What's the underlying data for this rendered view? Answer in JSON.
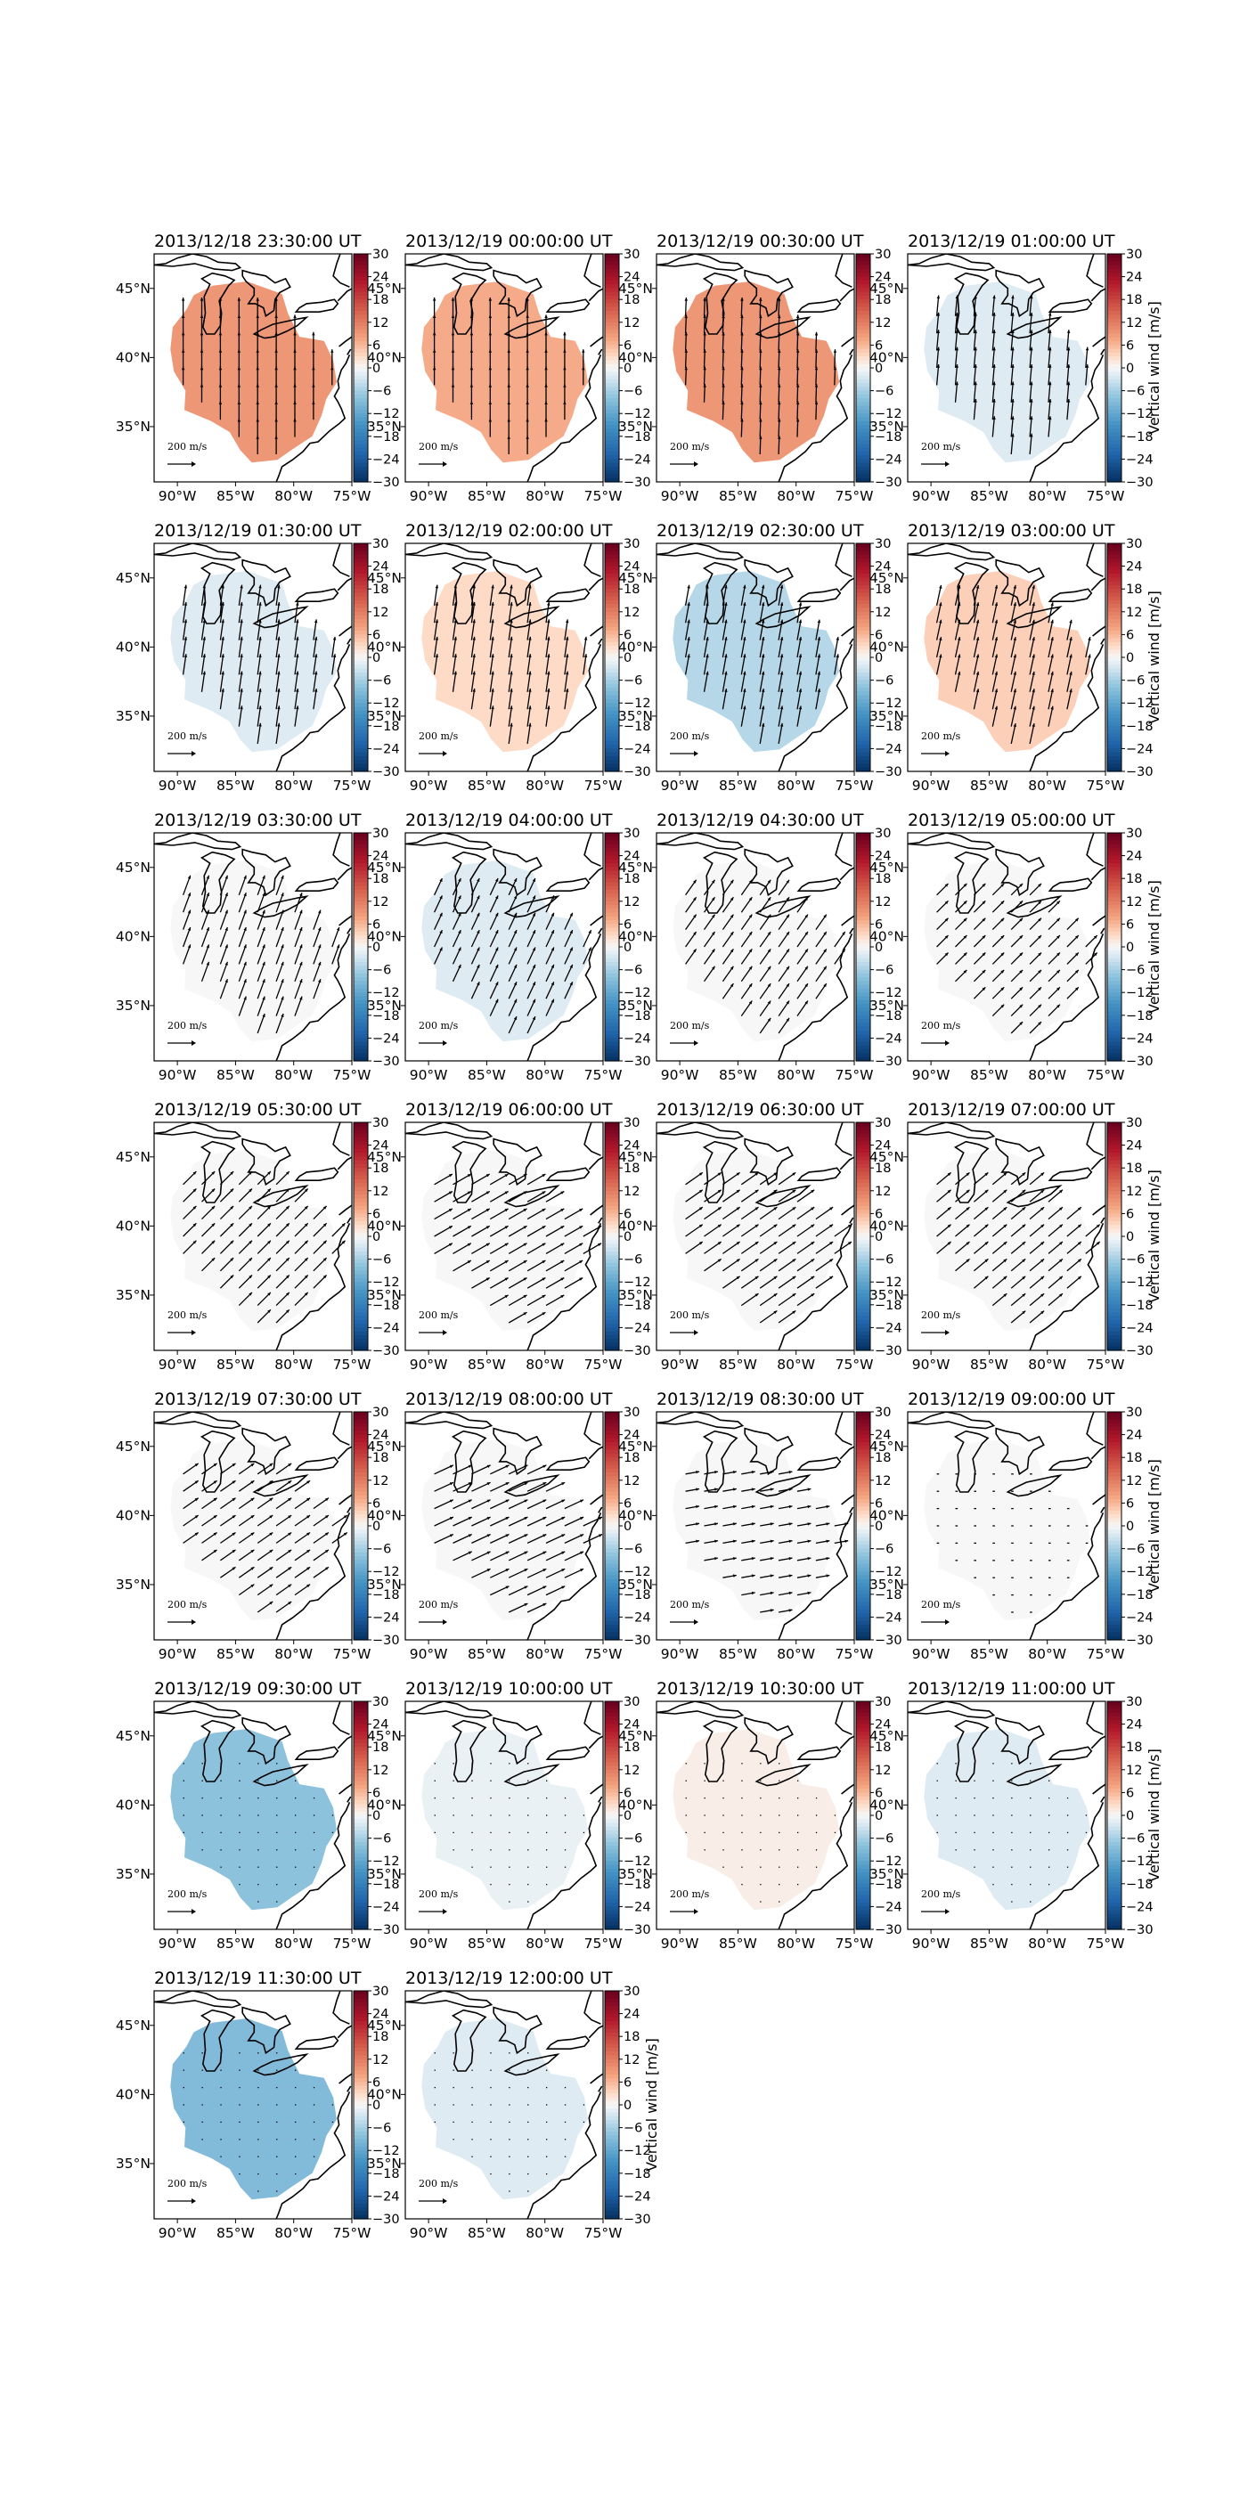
{
  "figure": {
    "colorbar_label": "Vertical wind [m/s]",
    "colorbar_ticks": [
      "30",
      "24",
      "18",
      "12",
      "6",
      "0",
      "−6",
      "−12",
      "−18",
      "−24",
      "−30"
    ],
    "lon_ticks": [
      "90°W",
      "85°W",
      "80°W",
      "75°W"
    ],
    "lat_ticks": [
      "45°N",
      "40°N",
      "35°N"
    ],
    "scale_label": "200 m/s",
    "colors": {
      "positive": "#b2182b",
      "negative": "#2166ac",
      "neutral": "#f7f7f7"
    }
  },
  "chart_data": {
    "type": "map",
    "variable": "Vertical wind",
    "units": "m/s",
    "colorbar_range": [
      -30,
      30
    ],
    "lon_range": [
      -92,
      -75
    ],
    "lat_range": [
      31,
      47.5
    ],
    "panels": [
      {
        "title": "2013/12/18 23:30:00 UT",
        "vertical_wind": 9,
        "arrow_dir_deg": 180,
        "arrow_len": 0.8
      },
      {
        "title": "2013/12/19 00:00:00 UT",
        "vertical_wind": 7,
        "arrow_dir_deg": 180,
        "arrow_len": 0.8
      },
      {
        "title": "2013/12/19 00:30:00 UT",
        "vertical_wind": 9,
        "arrow_dir_deg": 182,
        "arrow_len": 0.8
      },
      {
        "title": "2013/12/19 01:00:00 UT",
        "vertical_wind": -2,
        "arrow_dir_deg": 185,
        "arrow_len": 0.9
      },
      {
        "title": "2013/12/19 01:30:00 UT",
        "vertical_wind": -2,
        "arrow_dir_deg": 188,
        "arrow_len": 0.9
      },
      {
        "title": "2013/12/19 02:00:00 UT",
        "vertical_wind": 3,
        "arrow_dir_deg": 188,
        "arrow_len": 0.9
      },
      {
        "title": "2013/12/19 02:30:00 UT",
        "vertical_wind": -5,
        "arrow_dir_deg": 190,
        "arrow_len": 0.9
      },
      {
        "title": "2013/12/19 03:00:00 UT",
        "vertical_wind": 4,
        "arrow_dir_deg": 192,
        "arrow_len": 0.9
      },
      {
        "title": "2013/12/19 03:30:00 UT",
        "vertical_wind": 0,
        "arrow_dir_deg": 200,
        "arrow_len": 0.9
      },
      {
        "title": "2013/12/19 04:00:00 UT",
        "vertical_wind": -2,
        "arrow_dir_deg": 205,
        "arrow_len": 0.8
      },
      {
        "title": "2013/12/19 04:30:00 UT",
        "vertical_wind": 0,
        "arrow_dir_deg": 215,
        "arrow_len": 0.8
      },
      {
        "title": "2013/12/19 05:00:00 UT",
        "vertical_wind": 0,
        "arrow_dir_deg": 225,
        "arrow_len": 0.7
      },
      {
        "title": "2013/12/19 05:30:00 UT",
        "vertical_wind": 0,
        "arrow_dir_deg": 225,
        "arrow_len": 0.8
      },
      {
        "title": "2013/12/19 06:00:00 UT",
        "vertical_wind": 0,
        "arrow_dir_deg": 240,
        "arrow_len": 0.9
      },
      {
        "title": "2013/12/19 06:30:00 UT",
        "vertical_wind": 0,
        "arrow_dir_deg": 235,
        "arrow_len": 0.9
      },
      {
        "title": "2013/12/19 07:00:00 UT",
        "vertical_wind": 0,
        "arrow_dir_deg": 230,
        "arrow_len": 0.8
      },
      {
        "title": "2013/12/19 07:30:00 UT",
        "vertical_wind": 0,
        "arrow_dir_deg": 235,
        "arrow_len": 0.8
      },
      {
        "title": "2013/12/19 08:00:00 UT",
        "vertical_wind": 0,
        "arrow_dir_deg": 245,
        "arrow_len": 0.9
      },
      {
        "title": "2013/12/19 08:30:00 UT",
        "vertical_wind": 0,
        "arrow_dir_deg": 260,
        "arrow_len": 0.6
      },
      {
        "title": "2013/12/19 09:00:00 UT",
        "vertical_wind": 0,
        "arrow_dir_deg": 270,
        "arrow_len": 0.1
      },
      {
        "title": "2013/12/19 09:30:00 UT",
        "vertical_wind": -8,
        "arrow_dir_deg": 270,
        "arrow_len": 0.05
      },
      {
        "title": "2013/12/19 10:00:00 UT",
        "vertical_wind": -1,
        "arrow_dir_deg": 270,
        "arrow_len": 0.05
      },
      {
        "title": "2013/12/19 10:30:00 UT",
        "vertical_wind": 1,
        "arrow_dir_deg": 270,
        "arrow_len": 0.05
      },
      {
        "title": "2013/12/19 11:00:00 UT",
        "vertical_wind": -2,
        "arrow_dir_deg": 270,
        "arrow_len": 0.05
      },
      {
        "title": "2013/12/19 11:30:00 UT",
        "vertical_wind": -9,
        "arrow_dir_deg": 270,
        "arrow_len": 0.05
      },
      {
        "title": "2013/12/19 12:00:00 UT",
        "vertical_wind": -2,
        "arrow_dir_deg": 270,
        "arrow_len": 0.05
      }
    ]
  }
}
